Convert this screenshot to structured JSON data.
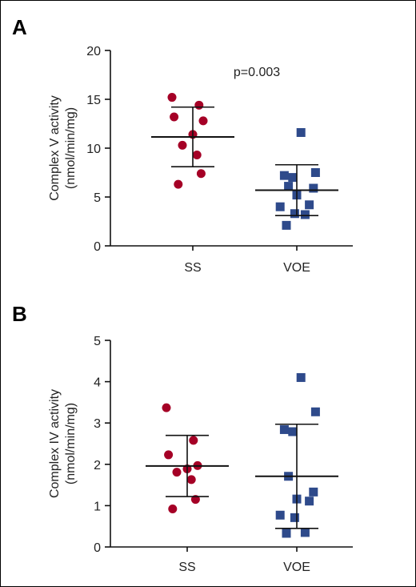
{
  "chart_data": [
    {
      "type": "scatter",
      "panel": "A",
      "ylabel_line1": "Complex V activity",
      "ylabel_line2": "(nmol/min/mg)",
      "ylim": [
        0,
        20
      ],
      "yticks": [
        "0",
        "5",
        "10",
        "15",
        "20"
      ],
      "categories": [
        "SS",
        "VOE"
      ],
      "annotation": "p=0.003",
      "series": [
        {
          "category": "SS",
          "marker": "circle",
          "color": "#a50026",
          "values": [
            15.2,
            14.4,
            13.2,
            12.8,
            11.4,
            10.3,
            9.3,
            7.4,
            6.3
          ],
          "mean": 11.15,
          "sd_upper": 14.2,
          "sd_lower": 8.1
        },
        {
          "category": "VOE",
          "marker": "square",
          "color": "#2e4a8b",
          "values": [
            11.6,
            7.5,
            7.2,
            7.0,
            6.1,
            5.9,
            5.2,
            4.2,
            4.0,
            3.3,
            3.2,
            2.1
          ],
          "mean": 5.7,
          "sd_upper": 8.3,
          "sd_lower": 3.1
        }
      ]
    },
    {
      "type": "scatter",
      "panel": "B",
      "ylabel_line1": "Complex IV activity",
      "ylabel_line2": "(nmol/min/mg)",
      "ylim": [
        0,
        5
      ],
      "yticks": [
        "0",
        "1",
        "2",
        "3",
        "4",
        "5"
      ],
      "categories": [
        "SS",
        "VOE"
      ],
      "series": [
        {
          "category": "SS",
          "marker": "circle",
          "color": "#a50026",
          "values": [
            3.37,
            2.58,
            2.23,
            1.97,
            1.89,
            1.81,
            1.63,
            1.15,
            0.92
          ],
          "mean": 1.96,
          "sd_upper": 2.7,
          "sd_lower": 1.22
        },
        {
          "category": "VOE",
          "marker": "square",
          "color": "#2e4a8b",
          "values": [
            4.1,
            3.27,
            2.84,
            2.79,
            1.71,
            1.33,
            1.16,
            1.11,
            0.77,
            0.71,
            0.35,
            0.33
          ],
          "mean": 1.71,
          "sd_upper": 2.97,
          "sd_lower": 0.45
        }
      ]
    }
  ]
}
